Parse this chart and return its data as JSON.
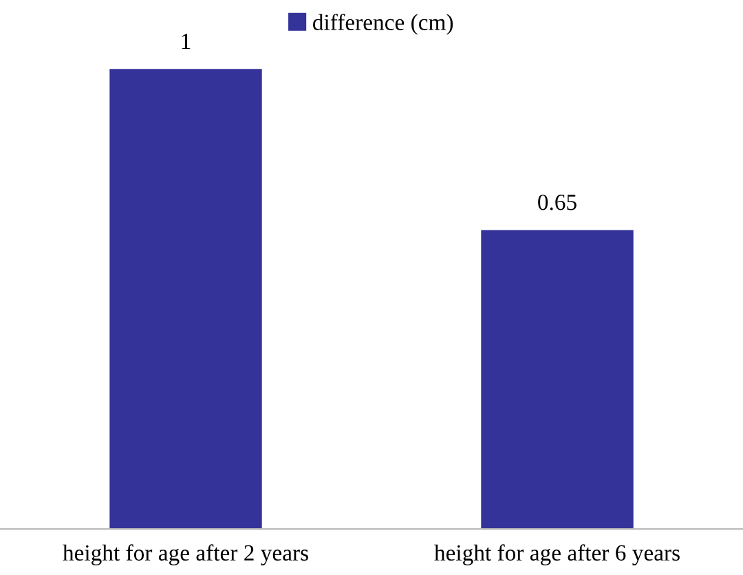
{
  "chart_data": {
    "type": "bar",
    "categories": [
      "height for age after 2 years",
      "height for age after 6 years"
    ],
    "series": [
      {
        "name": "difference (cm)",
        "color": "#333399",
        "values": [
          1,
          0.65
        ]
      }
    ],
    "data_labels": true,
    "legend": "top",
    "grid": false
  }
}
